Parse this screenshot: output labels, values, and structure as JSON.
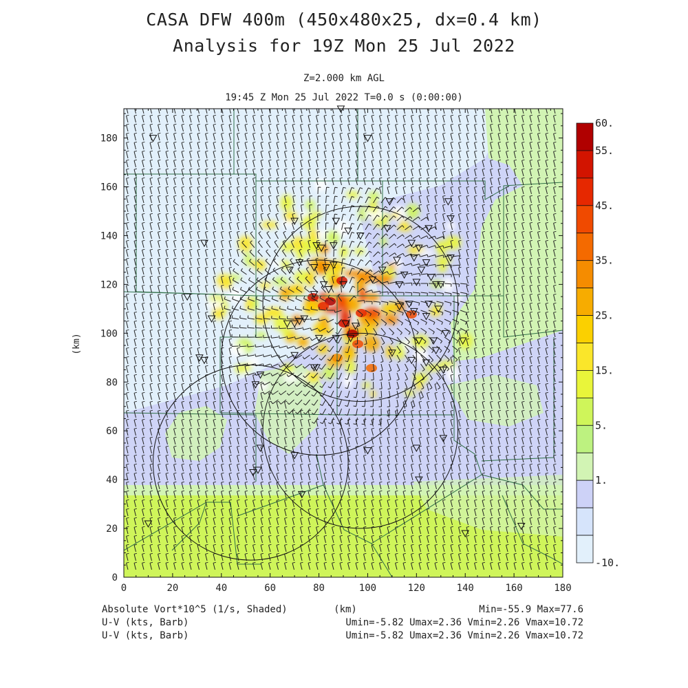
{
  "header": {
    "title": "CASA DFW 400m (450x480x25, dx=0.4 km)",
    "subtitle": "Analysis for 19Z Mon 25 Jul 2022",
    "level": "Z=2.000 km AGL",
    "time": "19:45 Z Mon 25 Jul 2022   T=0.0 s (0:00:00)"
  },
  "axes": {
    "x_ticks": [
      "0",
      "20",
      "40",
      "60",
      "80",
      "100",
      "120",
      "140",
      "160",
      "180"
    ],
    "y_ticks": [
      "0",
      "20",
      "40",
      "60",
      "80",
      "100",
      "120",
      "140",
      "160",
      "180"
    ],
    "x_label": "(km)",
    "y_label": "(km)",
    "x_range": [
      0,
      180
    ],
    "y_range": [
      0,
      192
    ]
  },
  "colorbar": {
    "labels": [
      "60.",
      "55.",
      "45.",
      "35.",
      "25.",
      "15.",
      "5.",
      "1.",
      "-10."
    ],
    "colors": [
      "#b00000",
      "#d21400",
      "#e62800",
      "#f04a00",
      "#f46a00",
      "#f58c00",
      "#f7ac00",
      "#fbd000",
      "#fae62a",
      "#e9f53a",
      "#cff55a",
      "#bdf280",
      "#d2f4b4",
      "#cdd2f7",
      "#d6e4fb",
      "#e2f0fb"
    ]
  },
  "footer": {
    "field": "Absolute Vort*10^5 (1/s, Shaded)",
    "xunit": "(km)",
    "minmax": "Min=-55.9 Max=77.6",
    "barb1": "U-V (kts, Barb)",
    "barb1_range": "Umin=-5.82 Umax=2.36 Vmin=2.26 Vmax=10.72",
    "barb2": "U-V (kts, Barb)",
    "barb2_range": "Umin=-5.82 Umax=2.36 Vmin=2.26 Vmax=10.72"
  },
  "map": {
    "shading_colors": {
      "background": "#e2f0fb",
      "light_blue": "#cdd2f7",
      "green": "#d2f4b4",
      "bright_green": "#cff55a",
      "border": "#2e6e45",
      "barb": "#222222"
    },
    "radar_rings": [
      {
        "cx_km": 97,
        "cy_km": 112,
        "r_km": 40
      },
      {
        "cx_km": 80,
        "cy_km": 90,
        "r_km": 40
      },
      {
        "cx_km": 97,
        "cy_km": 60,
        "r_km": 40
      },
      {
        "cx_km": 52,
        "cy_km": 47,
        "r_km": 40
      }
    ],
    "stations_km": [
      [
        12,
        180
      ],
      [
        89,
        192
      ],
      [
        100,
        180
      ],
      [
        33,
        137
      ],
      [
        70,
        146
      ],
      [
        109,
        154
      ],
      [
        133,
        154
      ],
      [
        134,
        147
      ],
      [
        87,
        146
      ],
      [
        92,
        142
      ],
      [
        108,
        143
      ],
      [
        97,
        140
      ],
      [
        79,
        136
      ],
      [
        81,
        135
      ],
      [
        86,
        136
      ],
      [
        121,
        135
      ],
      [
        125,
        143
      ],
      [
        118,
        137
      ],
      [
        134,
        131
      ],
      [
        112,
        130
      ],
      [
        119,
        131
      ],
      [
        124,
        129
      ],
      [
        72,
        129
      ],
      [
        68,
        126
      ],
      [
        78,
        127
      ],
      [
        83,
        127
      ],
      [
        86,
        128
      ],
      [
        82,
        120
      ],
      [
        90,
        120
      ],
      [
        102,
        122
      ],
      [
        106,
        126
      ],
      [
        113,
        120
      ],
      [
        115,
        124
      ],
      [
        120,
        121
      ],
      [
        122,
        126
      ],
      [
        126,
        123
      ],
      [
        128,
        120
      ],
      [
        130,
        120
      ],
      [
        26,
        115
      ],
      [
        78,
        116
      ],
      [
        84,
        118
      ],
      [
        113,
        111
      ],
      [
        117,
        112
      ],
      [
        125,
        112
      ],
      [
        129,
        110
      ],
      [
        119,
        109
      ],
      [
        124,
        107
      ],
      [
        36,
        106
      ],
      [
        67,
        104
      ],
      [
        70,
        104
      ],
      [
        72,
        105
      ],
      [
        74,
        106
      ],
      [
        91,
        104
      ],
      [
        95,
        103
      ],
      [
        87,
        98
      ],
      [
        93,
        98
      ],
      [
        80,
        98
      ],
      [
        121,
        97
      ],
      [
        127,
        97
      ],
      [
        132,
        100
      ],
      [
        139,
        97
      ],
      [
        128,
        93
      ],
      [
        70,
        91
      ],
      [
        78,
        86
      ],
      [
        79,
        86
      ],
      [
        110,
        92
      ],
      [
        118,
        89
      ],
      [
        124,
        88
      ],
      [
        131,
        85
      ],
      [
        31,
        90
      ],
      [
        33,
        89
      ],
      [
        54,
        79
      ],
      [
        56,
        83
      ],
      [
        56,
        53
      ],
      [
        70,
        50
      ],
      [
        100,
        52
      ],
      [
        120,
        53
      ],
      [
        131,
        57
      ],
      [
        53,
        43
      ],
      [
        55,
        44
      ],
      [
        73,
        34
      ],
      [
        121,
        40
      ],
      [
        10,
        22
      ],
      [
        140,
        18
      ],
      [
        163,
        21
      ]
    ]
  }
}
